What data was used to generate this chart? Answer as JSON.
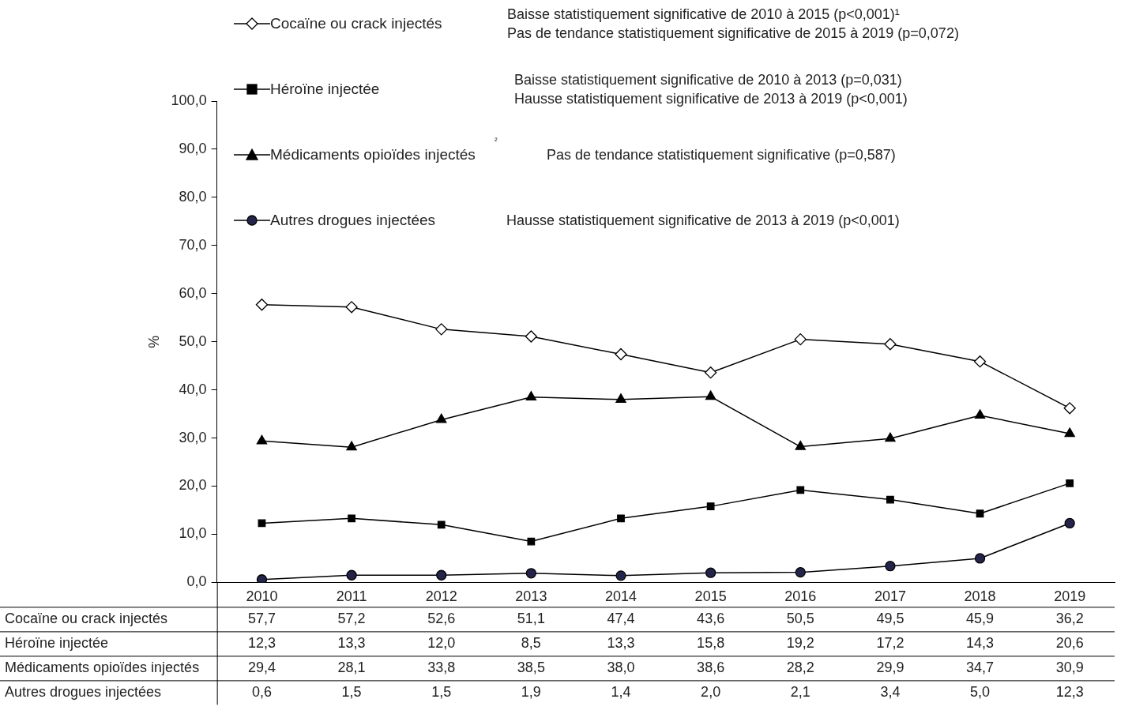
{
  "chart_data": {
    "type": "line",
    "categories": [
      "2010",
      "2011",
      "2012",
      "2013",
      "2014",
      "2015",
      "2016",
      "2017",
      "2018",
      "2019"
    ],
    "ylabel": "%",
    "ylim": [
      0,
      100
    ],
    "yticks": [
      {
        "value": 0,
        "label": "0,0"
      },
      {
        "value": 10,
        "label": "10,0"
      },
      {
        "value": 20,
        "label": "20,0"
      },
      {
        "value": 30,
        "label": "30,0"
      },
      {
        "value": 40,
        "label": "40,0"
      },
      {
        "value": 50,
        "label": "50,0"
      },
      {
        "value": 60,
        "label": "60,0"
      },
      {
        "value": 70,
        "label": "70,0"
      },
      {
        "value": 80,
        "label": "80,0"
      },
      {
        "value": 90,
        "label": "90,0"
      },
      {
        "value": 100,
        "label": "100,0"
      }
    ],
    "legend": "top",
    "grid": false,
    "line_style": "solid",
    "series": [
      {
        "name": "Cocaïne ou crack injectés",
        "color": "#000000",
        "marker": "diamond",
        "values": [
          57.7,
          57.2,
          52.6,
          51.1,
          47.4,
          43.6,
          50.5,
          49.5,
          45.9,
          36.2
        ],
        "value_labels": [
          "57,7",
          "57,2",
          "52,6",
          "51,1",
          "47,4",
          "43,6",
          "50,5",
          "49,5",
          "45,9",
          "36,2"
        ]
      },
      {
        "name": "Héroïne injectée",
        "color": "#000000",
        "marker": "square",
        "values": [
          12.3,
          13.3,
          12.0,
          8.5,
          13.3,
          15.8,
          19.2,
          17.2,
          14.3,
          20.6
        ],
        "value_labels": [
          "12,3",
          "13,3",
          "12,0",
          "8,5",
          "13,3",
          "15,8",
          "19,2",
          "17,2",
          "14,3",
          "20,6"
        ]
      },
      {
        "name": "Médicaments opioïdes injectés",
        "color": "#000000",
        "marker": "triangle",
        "values": [
          29.4,
          28.1,
          33.8,
          38.5,
          38.0,
          38.6,
          28.2,
          29.9,
          34.7,
          30.9
        ],
        "value_labels": [
          "29,4",
          "28,1",
          "33,8",
          "38,5",
          "38,0",
          "38,6",
          "28,2",
          "29,9",
          "34,7",
          "30,9"
        ]
      },
      {
        "name": "Autres drogues injectées",
        "color": "#000000",
        "marker": "circle",
        "values": [
          0.6,
          1.5,
          1.5,
          1.9,
          1.4,
          2.0,
          2.1,
          3.4,
          5.0,
          12.3
        ],
        "value_labels": [
          "0,6",
          "1,5",
          "1,5",
          "1,9",
          "1,4",
          "2,0",
          "2,1",
          "3,4",
          "5,0",
          "12,3"
        ]
      }
    ],
    "annotations": [
      "Baisse statistiquement significative de 2010 à 2015 (p<0,001)¹\nPas de tendance statistiquement significative de 2015 à 2019 (p=0,072)",
      "Baisse statistiquement significative de 2010 à 2013 (p=0,031)\nHausse statistiquement significative de 2013 à 2019 (p<0,001)",
      "Pas de tendance statistiquement significative (p=0,587)",
      "Hausse statistiquement significative de 2013 à 2019 (p<0,001)",
      "²"
    ]
  }
}
